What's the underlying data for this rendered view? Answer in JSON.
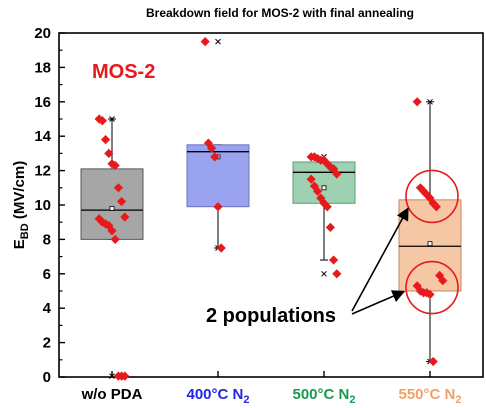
{
  "chart_data": {
    "type": "box",
    "title": "Breakdown field for MOS-2 with final annealing",
    "ylabel_main": "E",
    "ylabel_sub": "BD",
    "ylabel_unit": " (MV/cm)",
    "ylim": [
      0,
      20
    ],
    "yticks": [
      "0",
      "2",
      "4",
      "6",
      "8",
      "10",
      "12",
      "14",
      "16",
      "18",
      "20"
    ],
    "grid": false,
    "categories": [
      {
        "main": "w/o PDA",
        "sub": "",
        "color": "#000000"
      },
      {
        "main": "400°C N",
        "sub": "2",
        "color": "#2424e6"
      },
      {
        "main": "500°C N",
        "sub": "2",
        "color": "#1a9a50"
      },
      {
        "main": "550°C N",
        "sub": "2",
        "color": "#f2a06a"
      }
    ],
    "boxes": [
      {
        "q1": 8.0,
        "median": 9.7,
        "q3": 12.1,
        "whisker_low": 8.0,
        "whisker_high": 15.0,
        "mean": 9.8,
        "max_marker": 15.0,
        "min_marker": 0.05,
        "fill": "#a6a6a6",
        "edge": "#5a5a5a",
        "points": [
          15.0,
          14.9,
          13.8,
          13.0,
          12.4,
          12.3,
          11.0,
          10.2,
          9.3,
          9.2,
          9.0,
          8.9,
          8.8,
          8.5,
          8.0,
          0.05,
          0.05,
          0.05
        ]
      },
      {
        "q1": 9.9,
        "median": 13.1,
        "q3": 13.5,
        "whisker_low": 7.5,
        "whisker_high": 13.5,
        "mean": 12.8,
        "max_marker": 19.5,
        "min_marker": 7.5,
        "fill": "#9aa3f0",
        "edge": "#6d74c0",
        "points": [
          19.5,
          13.6,
          13.3,
          12.8,
          9.9,
          7.5
        ]
      },
      {
        "q1": 10.1,
        "median": 11.9,
        "q3": 12.5,
        "whisker_low": 6.8,
        "whisker_high": 12.5,
        "mean": 11.0,
        "max_marker": 12.8,
        "min_marker": 6.0,
        "fill": "#9dd1b1",
        "edge": "#5d9a76",
        "points": [
          12.8,
          12.8,
          12.7,
          12.6,
          12.6,
          12.4,
          12.2,
          12.1,
          11.8,
          11.5,
          11.1,
          10.8,
          10.4,
          10.1,
          9.9,
          8.7,
          6.8,
          6.0
        ]
      },
      {
        "q1": 5.0,
        "median": 7.6,
        "q3": 10.3,
        "whisker_low": 0.9,
        "whisker_high": 16.0,
        "mean": 7.75,
        "max_marker": 16.0,
        "min_marker": 0.9,
        "fill": "#f6c7a4",
        "edge": "#c28a63",
        "points": [
          16.0,
          11.0,
          10.8,
          10.6,
          10.4,
          10.1,
          9.9,
          5.9,
          5.6,
          5.3,
          5.0,
          4.9,
          4.9,
          4.8,
          0.9
        ]
      }
    ],
    "point_color": "#e8191c",
    "annotations": [
      {
        "text": "MOS-2",
        "color": "#e8191c"
      },
      {
        "text": "2 populations",
        "color": "#000000"
      }
    ],
    "circles": [
      {
        "category": 3,
        "y_center": 10.5,
        "color": "#e8191c"
      },
      {
        "category": 3,
        "y_center": 5.2,
        "color": "#e8191c"
      }
    ]
  }
}
